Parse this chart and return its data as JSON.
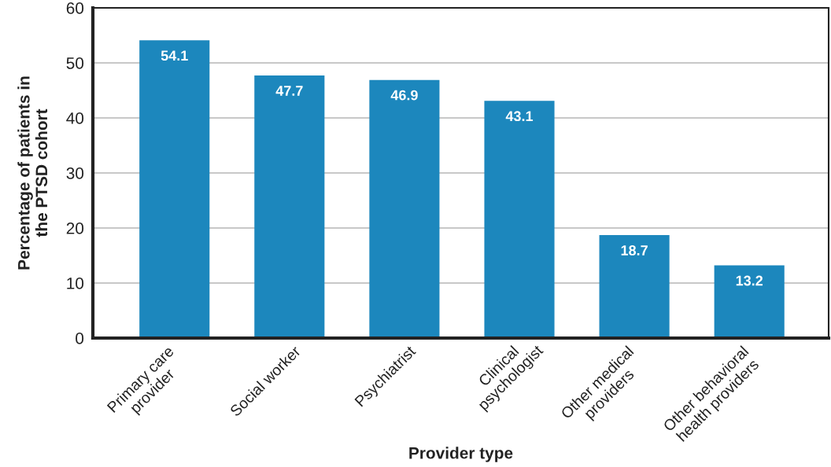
{
  "chart_data": {
    "type": "bar",
    "xlabel": "Provider type",
    "ylabel": "Percentage of patients in\nthe PTSD cohort",
    "categories": [
      "Primary care\nprovider",
      "Social worker",
      "Psychiatrist",
      "Clinical\npsychologist",
      "Other medical\nproviders",
      "Other behavioral\nhealth providers"
    ],
    "values": [
      54.1,
      47.7,
      46.9,
      43.1,
      18.7,
      13.2
    ],
    "color": "#1c87bd",
    "ylim": [
      0,
      60
    ],
    "yticks": [
      0,
      10,
      20,
      30,
      40,
      50,
      60
    ],
    "grid": "y",
    "data_labels": true
  }
}
